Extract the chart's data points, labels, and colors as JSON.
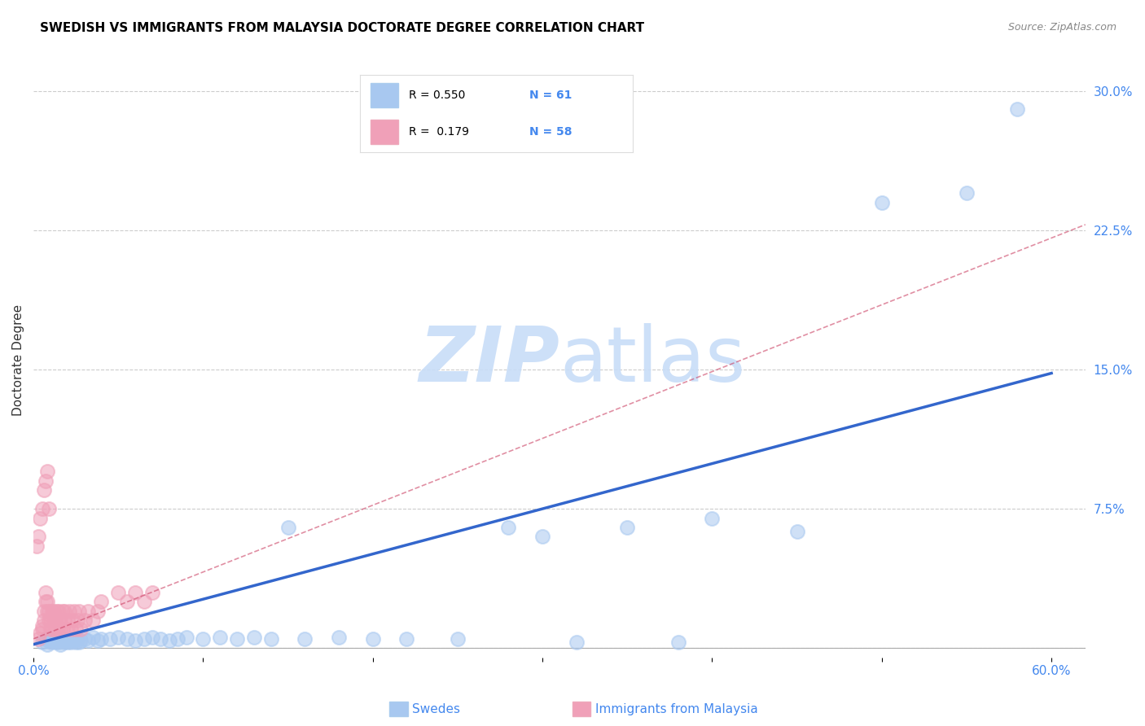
{
  "title": "SWEDISH VS IMMIGRANTS FROM MALAYSIA DOCTORATE DEGREE CORRELATION CHART",
  "source": "Source: ZipAtlas.com",
  "xlim": [
    0.0,
    0.62
  ],
  "ylim": [
    -0.005,
    0.315
  ],
  "watermark": "ZIPatlas",
  "blue_color": "#a8c8f0",
  "pink_color": "#f0a0b8",
  "blue_line_color": "#3366cc",
  "pink_line_color": "#cc4466",
  "blue_scatter_x": [
    0.005,
    0.007,
    0.008,
    0.009,
    0.01,
    0.01,
    0.012,
    0.013,
    0.014,
    0.015,
    0.015,
    0.016,
    0.017,
    0.018,
    0.019,
    0.02,
    0.02,
    0.021,
    0.022,
    0.023,
    0.024,
    0.025,
    0.026,
    0.027,
    0.028,
    0.03,
    0.032,
    0.035,
    0.038,
    0.04,
    0.045,
    0.05,
    0.055,
    0.06,
    0.065,
    0.07,
    0.075,
    0.08,
    0.085,
    0.09,
    0.1,
    0.11,
    0.12,
    0.13,
    0.14,
    0.15,
    0.16,
    0.18,
    0.2,
    0.22,
    0.25,
    0.28,
    0.3,
    0.32,
    0.35,
    0.38,
    0.4,
    0.45,
    0.5,
    0.55,
    0.58
  ],
  "blue_scatter_y": [
    0.003,
    0.005,
    0.002,
    0.004,
    0.003,
    0.006,
    0.004,
    0.003,
    0.005,
    0.003,
    0.004,
    0.002,
    0.005,
    0.003,
    0.004,
    0.003,
    0.005,
    0.004,
    0.003,
    0.005,
    0.004,
    0.003,
    0.005,
    0.003,
    0.004,
    0.005,
    0.004,
    0.006,
    0.004,
    0.005,
    0.005,
    0.006,
    0.005,
    0.004,
    0.005,
    0.006,
    0.005,
    0.004,
    0.005,
    0.006,
    0.005,
    0.006,
    0.005,
    0.006,
    0.005,
    0.065,
    0.005,
    0.006,
    0.005,
    0.005,
    0.005,
    0.065,
    0.06,
    0.003,
    0.065,
    0.003,
    0.07,
    0.063,
    0.24,
    0.245,
    0.29
  ],
  "pink_scatter_x": [
    0.003,
    0.004,
    0.005,
    0.005,
    0.006,
    0.006,
    0.007,
    0.007,
    0.008,
    0.008,
    0.009,
    0.009,
    0.01,
    0.01,
    0.011,
    0.011,
    0.012,
    0.012,
    0.013,
    0.013,
    0.014,
    0.014,
    0.015,
    0.015,
    0.016,
    0.016,
    0.017,
    0.017,
    0.018,
    0.018,
    0.019,
    0.02,
    0.021,
    0.022,
    0.023,
    0.024,
    0.025,
    0.026,
    0.027,
    0.028,
    0.03,
    0.032,
    0.035,
    0.038,
    0.04,
    0.05,
    0.055,
    0.06,
    0.065,
    0.07,
    0.002,
    0.003,
    0.004,
    0.005,
    0.006,
    0.007,
    0.008,
    0.009
  ],
  "pink_scatter_y": [
    0.005,
    0.008,
    0.01,
    0.012,
    0.015,
    0.02,
    0.025,
    0.03,
    0.02,
    0.025,
    0.015,
    0.02,
    0.01,
    0.015,
    0.02,
    0.01,
    0.015,
    0.02,
    0.01,
    0.015,
    0.02,
    0.01,
    0.015,
    0.02,
    0.01,
    0.015,
    0.02,
    0.01,
    0.015,
    0.02,
    0.01,
    0.015,
    0.02,
    0.01,
    0.015,
    0.02,
    0.01,
    0.015,
    0.02,
    0.01,
    0.015,
    0.02,
    0.015,
    0.02,
    0.025,
    0.03,
    0.025,
    0.03,
    0.025,
    0.03,
    0.055,
    0.06,
    0.07,
    0.075,
    0.085,
    0.09,
    0.095,
    0.075
  ],
  "blue_trend_x": [
    0.0,
    0.6
  ],
  "blue_trend_y": [
    0.002,
    0.148
  ],
  "pink_trend_x": [
    0.0,
    0.62
  ],
  "pink_trend_y": [
    0.005,
    0.228
  ],
  "ylabel": "Doctorate Degree",
  "legend1_label": "Swedes",
  "legend2_label": "Immigrants from Malaysia",
  "grid_color": "#cccccc",
  "bg_color": "#ffffff",
  "title_fontsize": 11,
  "tick_color": "#4488ee",
  "watermark_color": "#ddeeff",
  "ylabel_ticks": [
    0.0,
    0.075,
    0.15,
    0.225,
    0.3
  ],
  "ylabel_labels": [
    "",
    "7.5%",
    "15.0%",
    "22.5%",
    "30.0%"
  ],
  "xlabel_ticks": [
    0.0,
    0.1,
    0.2,
    0.3,
    0.4,
    0.5,
    0.6
  ],
  "xlabel_labels": [
    "0.0%",
    "",
    "",
    "",
    "",
    "",
    "60.0%"
  ]
}
